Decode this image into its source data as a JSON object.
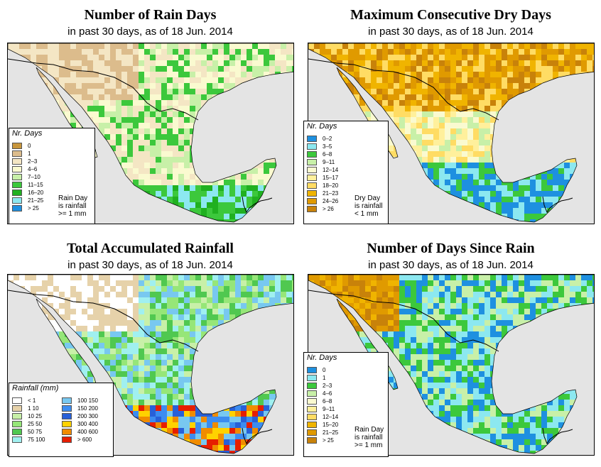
{
  "panels": [
    {
      "title": "Number of Rain Days",
      "subtitle": "in past 30 days, as of  18 Jun. 2014",
      "legend_title": "Nr. Days",
      "legend": [
        {
          "label": "0",
          "color": "#c8963c"
        },
        {
          "label": "1",
          "color": "#dcbc8c"
        },
        {
          "label": "2–3",
          "color": "#f4e6c4"
        },
        {
          "label": "4–6",
          "color": "#fafad0"
        },
        {
          "label": "7–10",
          "color": "#c8f0a8"
        },
        {
          "label": "11–15",
          "color": "#3cc83c"
        },
        {
          "label": "16–20",
          "color": "#20b020"
        },
        {
          "label": "21–25",
          "color": "#8ce8f0"
        },
        {
          "label": "> 25",
          "color": "#1e90e0"
        }
      ],
      "note": [
        "Rain Day",
        "is rainfall",
        ">= 1 mm"
      ]
    },
    {
      "title": "Maximum Consecutive Dry Days",
      "subtitle": "in past 30 days, as of  18 Jun. 2014",
      "legend_title": "Nr. Days",
      "legend": [
        {
          "label": "0–2",
          "color": "#1e90e0"
        },
        {
          "label": "3–5",
          "color": "#8ce8f0"
        },
        {
          "label": "6–8",
          "color": "#3cc83c"
        },
        {
          "label": "9–11",
          "color": "#c8f0a8"
        },
        {
          "label": "12–14",
          "color": "#fafad0"
        },
        {
          "label": "15–17",
          "color": "#fff09c"
        },
        {
          "label": "18–20",
          "color": "#ffdc64"
        },
        {
          "label": "21–23",
          "color": "#f0b400"
        },
        {
          "label": "24–26",
          "color": "#e09a00"
        },
        {
          "label": "> 26",
          "color": "#c8820a"
        }
      ],
      "note": [
        "Dry Day",
        "is rainfall",
        "< 1 mm"
      ]
    },
    {
      "title": "Total Accumulated Rainfall",
      "subtitle": "in past 30 days, as of  18 Jun. 2014",
      "legend_title": "Rainfall (mm)",
      "legend": [
        {
          "label": "< 1",
          "color": "#ffffff"
        },
        {
          "label": "1    10",
          "color": "#e6d2aa"
        },
        {
          "label": "10    25",
          "color": "#c8f0a8"
        },
        {
          "label": "25    50",
          "color": "#96e678"
        },
        {
          "label": "50    75",
          "color": "#50c850"
        },
        {
          "label": "75    100",
          "color": "#a0f0f0"
        },
        {
          "label": "100    150",
          "color": "#78c8f0"
        },
        {
          "label": "150    200",
          "color": "#3c8cf0"
        },
        {
          "label": "200    300",
          "color": "#2860d8"
        },
        {
          "label": "300    400",
          "color": "#ffd200"
        },
        {
          "label": "400    600",
          "color": "#f08c00"
        },
        {
          "label": "> 600",
          "color": "#e61e00"
        }
      ],
      "note": []
    },
    {
      "title": "Number of Days Since Rain",
      "subtitle": "in past 30 days, as of  18 Jun. 2014",
      "legend_title": "Nr. Days",
      "legend": [
        {
          "label": "0",
          "color": "#1e90e0"
        },
        {
          "label": "1",
          "color": "#8ce8f0"
        },
        {
          "label": "2–3",
          "color": "#3cc83c"
        },
        {
          "label": "4–6",
          "color": "#c8f0a8"
        },
        {
          "label": "6–8",
          "color": "#fafad0"
        },
        {
          "label": "9–11",
          "color": "#fff09c"
        },
        {
          "label": "12–14",
          "color": "#ffdc64"
        },
        {
          "label": "15–20",
          "color": "#f0b400"
        },
        {
          "label": "21–25",
          "color": "#e09a00"
        },
        {
          "label": "> 25",
          "color": "#c8820a"
        }
      ],
      "note": [
        "Rain Day",
        "is rainfall",
        ">= 1 mm"
      ]
    }
  ]
}
